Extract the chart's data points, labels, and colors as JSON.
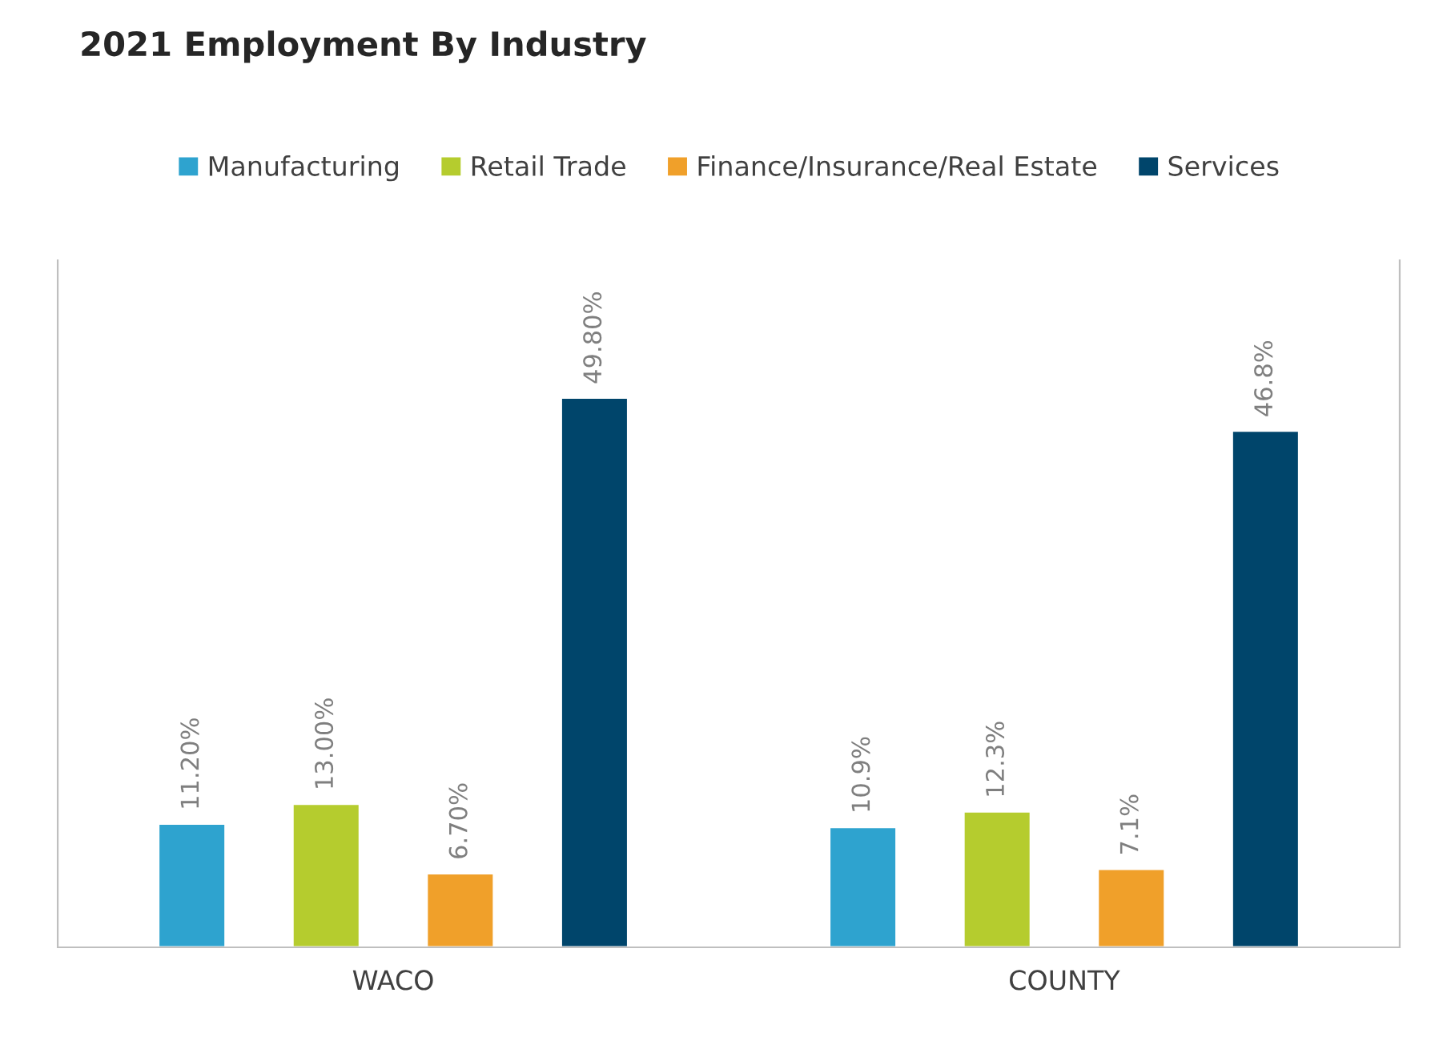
{
  "chart_data": {
    "type": "bar",
    "title": "2021 Employment By Industry",
    "categories": [
      "WACO",
      "COUNTY"
    ],
    "series": [
      {
        "name": "Manufacturing",
        "color": "#2ea3cf",
        "values": [
          11.2,
          10.9
        ],
        "value_labels": [
          "11.20%",
          "10.9%"
        ]
      },
      {
        "name": "Retail Trade",
        "color": "#b5cc2e",
        "values": [
          13.0,
          12.3
        ],
        "value_labels": [
          "13.00%",
          "12.3%"
        ]
      },
      {
        "name": "Finance/Insurance/Real Estate",
        "color": "#f0a02a",
        "values": [
          6.7,
          7.1
        ],
        "value_labels": [
          "6.70%",
          "7.1%"
        ]
      },
      {
        "name": "Services",
        "color": "#00456b",
        "values": [
          49.8,
          46.8
        ],
        "value_labels": [
          "49.80%",
          "46.8%"
        ]
      }
    ],
    "legend": "top",
    "grid": false
  }
}
